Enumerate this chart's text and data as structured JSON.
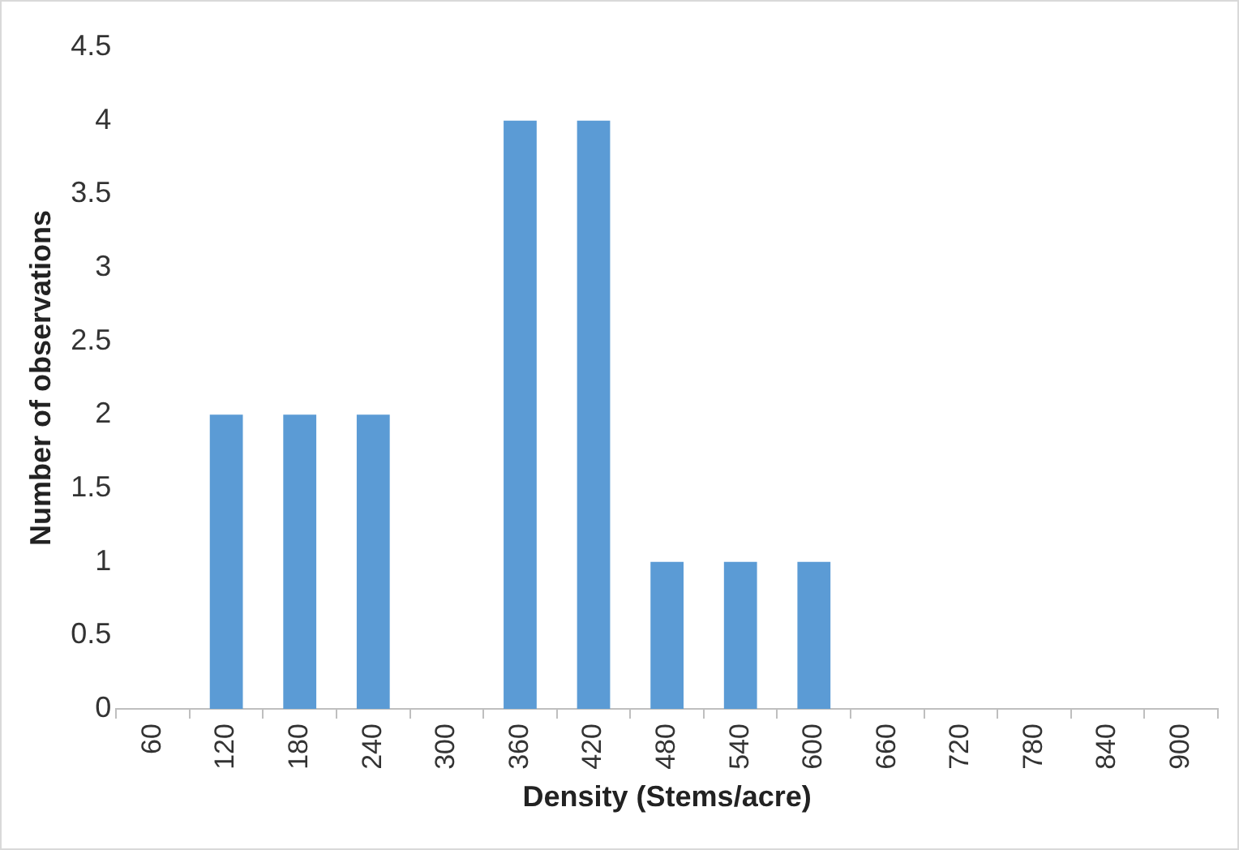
{
  "chart_data": {
    "type": "bar",
    "xlabel": "Density (Stems/acre)",
    "ylabel": "Number of observations",
    "categories": [
      "60",
      "120",
      "180",
      "240",
      "300",
      "360",
      "420",
      "480",
      "540",
      "600",
      "660",
      "720",
      "780",
      "840",
      "900"
    ],
    "values": [
      0,
      2,
      2,
      2,
      0,
      4,
      4,
      1,
      1,
      1,
      0,
      0,
      0,
      0,
      0
    ],
    "color": "#5b9bd5",
    "ylim": [
      0,
      4.5
    ],
    "yticks": [
      0,
      0.5,
      1,
      1.5,
      2,
      2.5,
      3,
      3.5,
      4,
      4.5
    ],
    "grid": false,
    "legend": false
  }
}
